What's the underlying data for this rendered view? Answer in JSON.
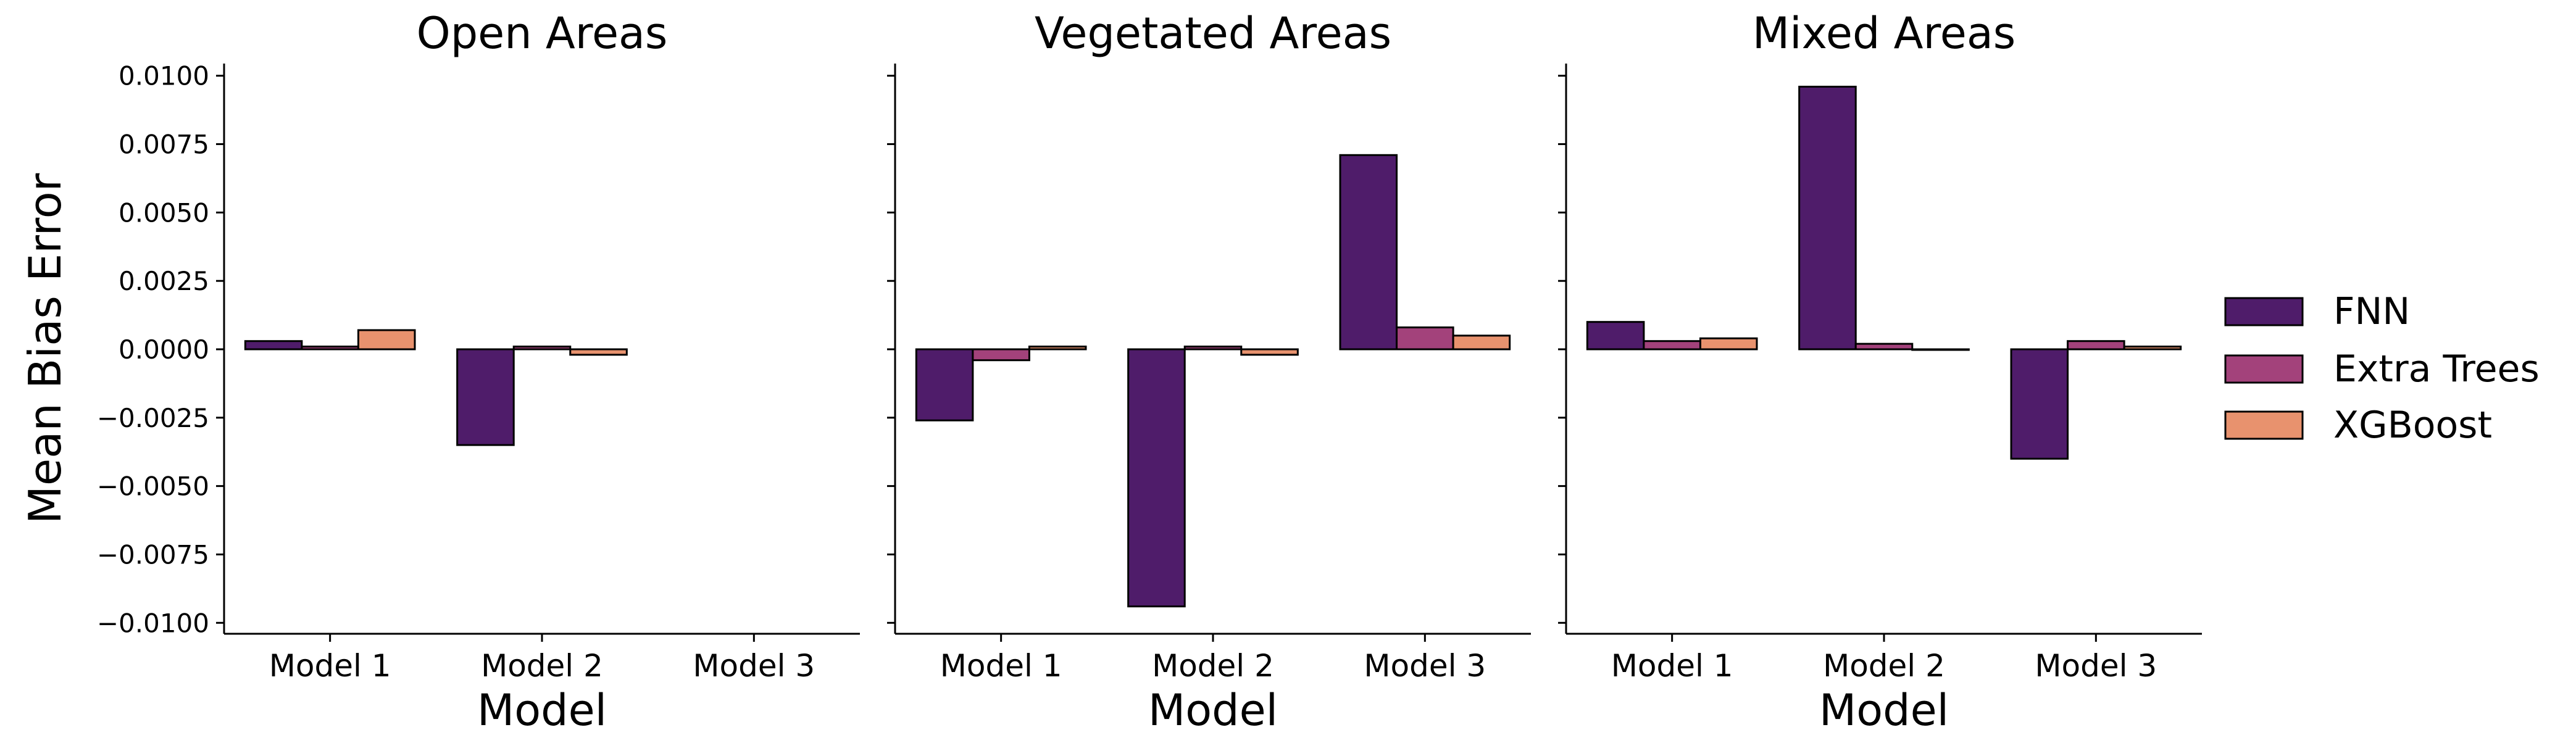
{
  "chart_data": {
    "type": "bar",
    "ylabel": "Mean Bias Error",
    "ylim": [
      -0.0104,
      0.0104
    ],
    "yticks": [
      -0.01,
      -0.0075,
      -0.005,
      -0.0025,
      0.0,
      0.0025,
      0.005,
      0.0075,
      0.01
    ],
    "ytick_labels": [
      "−0.0100",
      "−0.0075",
      "−0.0050",
      "−0.0025",
      "0.0000",
      "0.0025",
      "0.0050",
      "0.0075",
      "0.0100"
    ],
    "grid": false,
    "legend_position": "right",
    "series": [
      {
        "name": "FNN",
        "color": "#4f1c6a"
      },
      {
        "name": "Extra Trees",
        "color": "#a3427b"
      },
      {
        "name": "XGBoost",
        "color": "#e8926e"
      }
    ],
    "panels": [
      {
        "title": "Open Areas",
        "xlabel": "Model",
        "categories": [
          "Model 1",
          "Model 2",
          "Model 3"
        ],
        "values": [
          [
            0.0003,
            -0.0035,
            null
          ],
          [
            0.0001,
            0.0001,
            null
          ],
          [
            0.0007,
            -0.0002,
            null
          ]
        ]
      },
      {
        "title": "Vegetated Areas",
        "xlabel": "Model",
        "categories": [
          "Model 1",
          "Model 2",
          "Model 3"
        ],
        "values": [
          [
            -0.0026,
            -0.0094,
            0.0071
          ],
          [
            -0.0004,
            0.0001,
            0.0008
          ],
          [
            0.0001,
            -0.0002,
            0.0005
          ]
        ]
      },
      {
        "title": "Mixed Areas",
        "xlabel": "Model",
        "categories": [
          "Model 1",
          "Model 2",
          "Model 3"
        ],
        "values": [
          [
            0.001,
            0.0096,
            -0.004
          ],
          [
            0.0003,
            0.0002,
            0.0003
          ],
          [
            0.0004,
            0.0,
            0.0001
          ]
        ]
      }
    ]
  }
}
